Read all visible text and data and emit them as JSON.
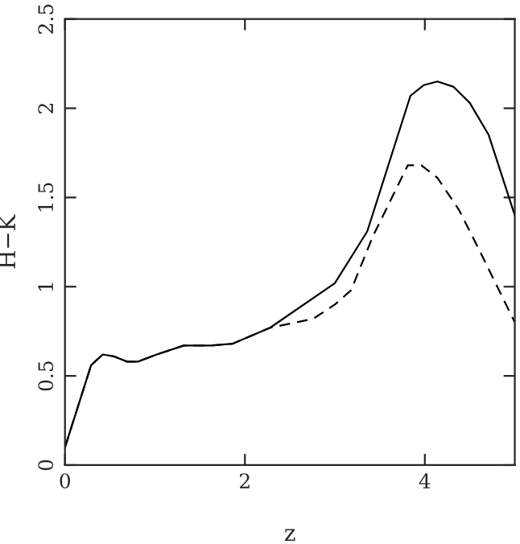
{
  "chart_data": {
    "type": "line",
    "xlabel": "z",
    "ylabel": "H−K",
    "xlim": [
      0,
      5
    ],
    "ylim": [
      0,
      2.5
    ],
    "xticks": [
      0,
      2,
      4
    ],
    "yticks": [
      0,
      0.5,
      1,
      1.5,
      2,
      2.5
    ],
    "grid": false,
    "legend": false,
    "marker": "none",
    "series": [
      {
        "color": "#000000",
        "line_style": "solid",
        "x": [
          0,
          0.12,
          0.29,
          0.42,
          0.54,
          0.69,
          0.81,
          1.02,
          1.32,
          1.62,
          1.86,
          2.28,
          3.0,
          3.36,
          3.84,
          3.99,
          4.14,
          4.32,
          4.5,
          4.71,
          5.0
        ],
        "values": [
          0.1,
          0.29,
          0.56,
          0.62,
          0.61,
          0.58,
          0.58,
          0.62,
          0.67,
          0.67,
          0.68,
          0.77,
          1.02,
          1.31,
          2.07,
          2.13,
          2.15,
          2.12,
          2.03,
          1.85,
          1.4
        ]
      },
      {
        "color": "#000000",
        "line_style": "dashed",
        "x": [
          0,
          0.12,
          0.29,
          0.42,
          0.54,
          0.69,
          0.81,
          1.02,
          1.32,
          1.62,
          1.86,
          2.28,
          2.76,
          3.0,
          3.18,
          3.42,
          3.81,
          3.96,
          4.14,
          4.38,
          4.62,
          5.0
        ],
        "values": [
          0.1,
          0.29,
          0.56,
          0.62,
          0.61,
          0.58,
          0.58,
          0.62,
          0.67,
          0.67,
          0.68,
          0.77,
          0.82,
          0.9,
          0.98,
          1.28,
          1.68,
          1.68,
          1.61,
          1.43,
          1.19,
          0.8
        ]
      }
    ]
  }
}
